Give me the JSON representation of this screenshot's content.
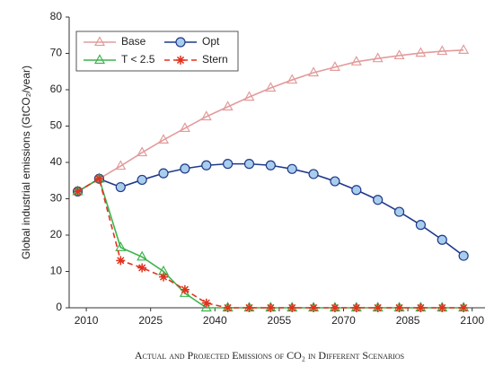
{
  "chart_data": {
    "type": "line",
    "caption": "Actual and Projected Emissions of CO₂ in Different Scenarios",
    "y_label": "Global industrial emissions (GtCO₂/year)",
    "x": [
      2008,
      2013,
      2018,
      2023,
      2028,
      2033,
      2038,
      2043,
      2048,
      2053,
      2058,
      2063,
      2068,
      2073,
      2078,
      2083,
      2088,
      2093,
      2098
    ],
    "xlim": [
      2006,
      2103
    ],
    "xticks": [
      2010,
      2025,
      2040,
      2055,
      2070,
      2085,
      2100
    ],
    "ylim": [
      0,
      80
    ],
    "yticks": [
      0,
      10,
      20,
      30,
      40,
      50,
      60,
      70,
      80
    ],
    "legend": "upper left",
    "series": [
      {
        "name": "Base",
        "color": "#e39b9b",
        "marker": "triangle",
        "values": [
          32,
          35.5,
          39,
          42.7,
          46.2,
          49.4,
          52.6,
          55.3,
          58,
          60.5,
          62.7,
          64.7,
          66.2,
          67.7,
          68.6,
          69.4,
          70.1,
          70.6,
          70.9
        ]
      },
      {
        "name": "Opt",
        "color": "#1f3a8a",
        "marker": "circle",
        "values": [
          32,
          35.5,
          33.2,
          35.2,
          37,
          38.3,
          39.2,
          39.6,
          39.6,
          39.2,
          38.2,
          36.8,
          34.8,
          32.4,
          29.7,
          26.4,
          22.8,
          18.7,
          14.3
        ]
      },
      {
        "name": "T < 2.5",
        "color": "#3cb44b",
        "marker": "triangle",
        "values": [
          32,
          35.5,
          16.6,
          14,
          10,
          4,
          0,
          0,
          0,
          0,
          0,
          0,
          0,
          0,
          0,
          0,
          0,
          0,
          0
        ]
      },
      {
        "name": "Stern",
        "color": "#e2321e",
        "marker": "star",
        "dashed": true,
        "values": [
          32,
          35.5,
          13,
          11,
          8.5,
          5,
          1.3,
          0,
          0,
          0,
          0,
          0,
          0,
          0,
          0,
          0,
          0,
          0,
          0
        ]
      }
    ]
  }
}
